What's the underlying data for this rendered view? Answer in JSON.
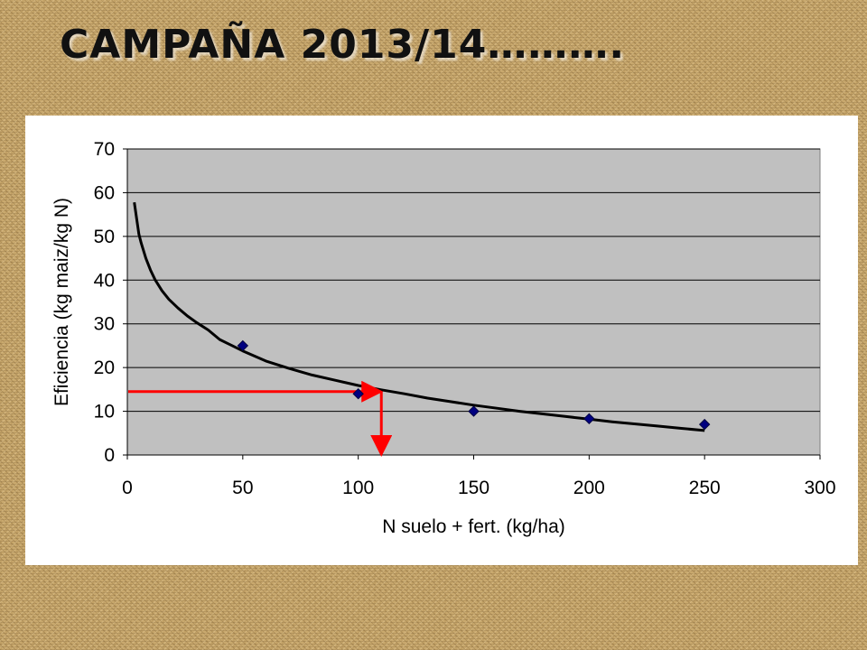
{
  "slide": {
    "title": "CAMPAÑA 2013/14………."
  },
  "colors": {
    "plot_background": "#c0c0c0",
    "gridline": "#000000",
    "marker": "#000080",
    "trend": "#000000",
    "arrow": "#ff0000"
  },
  "chart_data": {
    "type": "scatter",
    "xlabel": "N suelo + fert. (kg/ha)",
    "ylabel": "Eficiencia (kg maiz/kg N)",
    "xlim": [
      0,
      300
    ],
    "ylim": [
      0,
      70
    ],
    "xticks": [
      0,
      50,
      100,
      150,
      200,
      250,
      300
    ],
    "yticks": [
      0,
      10,
      20,
      30,
      40,
      50,
      60,
      70
    ],
    "grid": true,
    "legend": "none",
    "series": [
      {
        "marker": "diamond",
        "x": [
          50,
          100,
          150,
          200,
          250
        ],
        "y": [
          25,
          14,
          10,
          8.3,
          7
        ]
      }
    ],
    "trendline": {
      "type": "power",
      "x": [
        3,
        4,
        5,
        6,
        8,
        10,
        12,
        15,
        18,
        22,
        26,
        30,
        35,
        40,
        50,
        60,
        70,
        80,
        90,
        100,
        110,
        120,
        130,
        140,
        150,
        160,
        170,
        180,
        190,
        200,
        210,
        220,
        230,
        240,
        250
      ],
      "y": [
        57.8,
        54.2,
        50.5,
        48.5,
        45,
        42.3,
        40.1,
        37.6,
        35.6,
        33.6,
        31.8,
        30.3,
        28.6,
        26.4,
        23.8,
        21.5,
        19.8,
        18.3,
        17.1,
        15.9,
        14.9,
        14,
        13,
        12.2,
        11.4,
        10.7,
        10,
        9.4,
        8.8,
        8.2,
        7.6,
        7.1,
        6.6,
        6.1,
        5.6
      ]
    },
    "annotation": {
      "type": "arrows",
      "x": 110,
      "y": 14.5
    }
  }
}
